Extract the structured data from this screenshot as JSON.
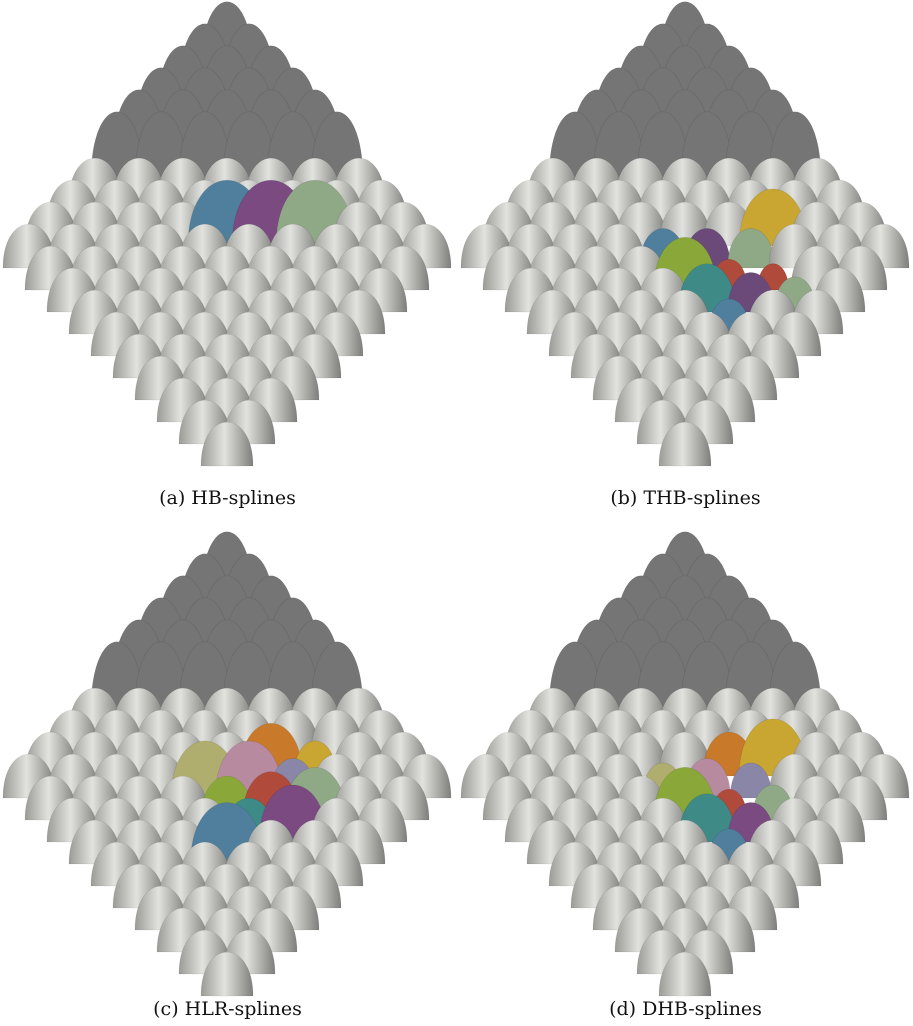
{
  "panels": [
    {
      "caption": "(a) HB-splines"
    },
    {
      "caption": "(b) THB-splines"
    },
    {
      "caption": "(c) HLR-splines"
    },
    {
      "caption": "(d) DHB-splines"
    }
  ]
}
